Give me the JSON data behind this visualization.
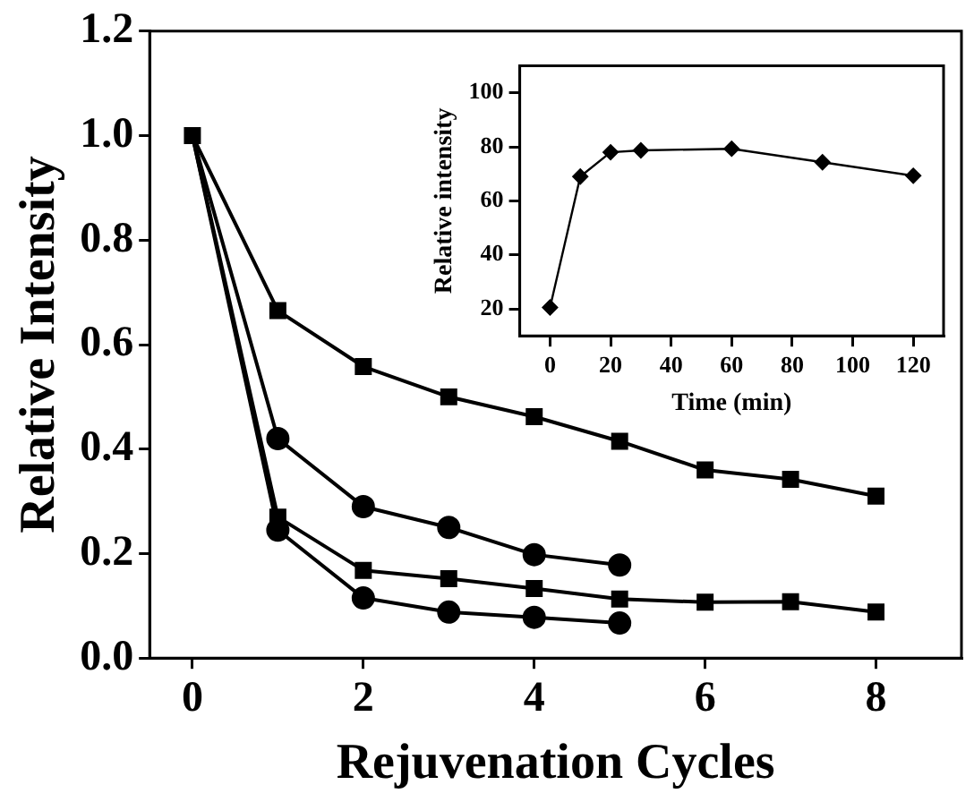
{
  "chart_data": [
    {
      "type": "line",
      "xlabel": "Rejuvenation Cycles",
      "ylabel": "Relative Intensity",
      "x": [
        0,
        1,
        2,
        3,
        4,
        5,
        6,
        7,
        8
      ],
      "series": [
        {
          "color": "#000000",
          "marker": "square",
          "values": [
            1,
            0.665,
            0.558,
            0.5,
            0.462,
            0.415,
            0.36,
            0.342,
            0.31
          ]
        },
        {
          "color": "#000000",
          "marker": "circle",
          "values": [
            1,
            0.42,
            0.29,
            0.25,
            0.198,
            0.178,
            null,
            null,
            null
          ]
        },
        {
          "color": "#000000",
          "marker": "square",
          "values": [
            1,
            0.27,
            0.168,
            0.152,
            0.133,
            0.113,
            0.107,
            0.108,
            0.088
          ]
        },
        {
          "color": "#000000",
          "marker": "circle",
          "values": [
            1,
            0.245,
            0.115,
            0.088,
            0.078,
            0.067,
            null,
            null,
            null
          ]
        }
      ],
      "xlim": [
        -0.5,
        9
      ],
      "xticks": [
        0,
        2,
        4,
        6,
        8
      ],
      "ylim": [
        0,
        1.2
      ],
      "yticks": [
        {
          "value": 0,
          "label": "0.0"
        },
        0.2,
        0.4,
        0.6,
        0.8,
        {
          "value": 1,
          "label": "1.0"
        },
        1.2
      ],
      "grid": false,
      "legend": false,
      "line_style": "solid"
    },
    {
      "type": "line",
      "xlabel": "Time (min)",
      "ylabel": "Relative intensity",
      "x": [
        0,
        10,
        20,
        30,
        60,
        90,
        120
      ],
      "values": [
        20.5,
        69,
        78,
        78.7,
        79.3,
        74.3,
        69.3
      ],
      "color": "#000000",
      "marker": "diamond",
      "xlim": [
        -10,
        130
      ],
      "xticks": [
        0,
        20,
        40,
        60,
        80,
        100,
        120
      ],
      "ylim": [
        10,
        110
      ],
      "yticks": [
        20,
        40,
        60,
        80,
        100
      ],
      "grid": false,
      "legend": false,
      "line_style": "solid"
    }
  ]
}
